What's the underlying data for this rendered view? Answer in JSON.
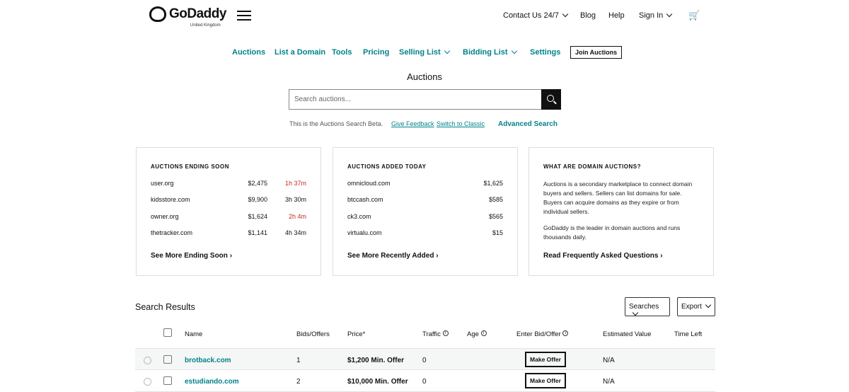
{
  "header": {
    "brand": "GoDaddy",
    "region": "United Kingdom",
    "contact": "Contact Us 24/7",
    "blog": "Blog",
    "help": "Help",
    "sign_in": "Sign In"
  },
  "nav": {
    "items": [
      "Auctions",
      "List a Domain",
      "Tools",
      "Pricing",
      "Selling List",
      "Bidding List",
      "Settings"
    ],
    "join": "Join Auctions"
  },
  "page_title": "Auctions",
  "search": {
    "placeholder": "Search auctions...",
    "beta_note": "This is the Auctions Search Beta.",
    "feedback": "Give Feedback",
    "classic": "Switch to Classic",
    "advanced": "Advanced Search"
  },
  "ending_soon": {
    "title": "AUCTIONS ENDING SOON",
    "rows": [
      {
        "domain": "user.org",
        "price": "$2,475",
        "time": "1h 37m",
        "urgent": true
      },
      {
        "domain": "kidsstore.com",
        "price": "$9,900",
        "time": "3h 30m",
        "urgent": false
      },
      {
        "domain": "owner.org",
        "price": "$1,624",
        "time": "2h 4m",
        "urgent": true
      },
      {
        "domain": "thetracker.com",
        "price": "$1,141",
        "time": "4h 34m",
        "urgent": false
      }
    ],
    "more": "See More Ending Soon"
  },
  "added_today": {
    "title": "AUCTIONS ADDED TODAY",
    "rows": [
      {
        "domain": "omnicloud.com",
        "price": "$1,625"
      },
      {
        "domain": "btccash.com",
        "price": "$585"
      },
      {
        "domain": "ck3.com",
        "price": "$565"
      },
      {
        "domain": "virtualu.com",
        "price": "$15"
      }
    ],
    "more": "See More Recently Added"
  },
  "about": {
    "title": "WHAT ARE DOMAIN AUCTIONS?",
    "p1": "Auctions is a secondary marketplace to connect domain buyers and sellers. Sellers can list domains for sale. Buyers can acquire domains as they expire or from individual sellers.",
    "p2": "GoDaddy is the leader in domain auctions and runs thousands daily.",
    "more": "Read Frequently Asked Questions"
  },
  "results": {
    "title": "Search Results",
    "searches": "Searches",
    "export": "Export",
    "columns": [
      "Name",
      "Bids/Offers",
      "Price*",
      "Traffic",
      "Age",
      "Enter Bid/Offer",
      "Estimated Value",
      "Time Left"
    ],
    "rows": [
      {
        "name": "brotback.com",
        "bids": "1",
        "price": "$1,200 Min. Offer",
        "traffic": "0",
        "action": "Make Offer",
        "value": "N/A"
      },
      {
        "name": "estudiando.com",
        "bids": "2",
        "price": "$10,000 Min. Offer",
        "traffic": "0",
        "action": "Make Offer",
        "value": "N/A"
      }
    ]
  },
  "colors": {
    "accent": "#00838c",
    "urgent": "#c8281e"
  }
}
